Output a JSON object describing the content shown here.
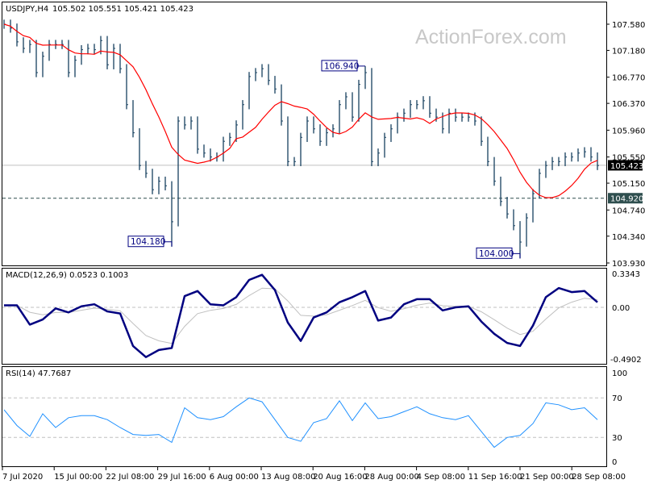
{
  "header": {
    "symbol": "USDJPY,H4",
    "ohlc": "105.502 105.551 105.421 105.423"
  },
  "watermark": "ActionForex.com",
  "macd_panel": {
    "label": "MACD(12,26,9) 0.0523 0.1003",
    "ticks": [
      "0.3343",
      "0.00",
      "-0.4902"
    ]
  },
  "rsi_panel": {
    "label": "RSI(14) 47.7687",
    "ticks": [
      "100",
      "70",
      "30",
      "0"
    ]
  },
  "chart_data": [
    {
      "type": "bar",
      "title": "USDJPY,H4",
      "price_ticks": [
        107.58,
        107.18,
        106.77,
        106.37,
        105.96,
        105.55,
        105.15,
        104.74,
        104.34,
        103.93
      ],
      "price_tick_labels": [
        "107.580",
        "107.180",
        "106.770",
        "106.370",
        "105.960",
        "105.550",
        "105.150",
        "104.740",
        "104.340",
        "103.930"
      ],
      "ylim": [
        103.93,
        107.58
      ],
      "x_tick_labels": [
        "7 Jul 2020",
        "15 Jul 00:00",
        "22 Jul 08:00",
        "29 Jul 16:00",
        "6 Aug 00:00",
        "13 Aug 08:00",
        "20 Aug 16:00",
        "28 Aug 00:00",
        "4 Sep 08:00",
        "11 Sep 16:00",
        "21 Sep 00:00",
        "28 Sep 08:00"
      ],
      "closes": [
        107.58,
        107.52,
        107.31,
        107.21,
        107.27,
        106.84,
        107.09,
        107.27,
        107.27,
        107.27,
        106.84,
        107.03,
        107.19,
        107.21,
        107.19,
        107.33,
        106.96,
        107.21,
        106.9,
        106.35,
        105.92,
        105.42,
        105.3,
        105.05,
        105.18,
        105.11,
        104.56,
        106.1,
        106.04,
        106.1,
        105.67,
        105.61,
        105.55,
        105.55,
        105.79,
        105.85,
        106.04,
        106.35,
        106.78,
        106.84,
        106.9,
        106.72,
        106.59,
        106.1,
        105.48,
        105.48,
        105.85,
        106.1,
        105.98,
        105.79,
        105.92,
        105.98,
        106.35,
        106.47,
        106.16,
        106.66,
        106.84,
        105.48,
        105.61,
        105.85,
        105.98,
        106.16,
        106.22,
        106.35,
        106.35,
        106.41,
        106.22,
        106.16,
        105.98,
        106.22,
        106.16,
        106.16,
        106.16,
        106.1,
        105.79,
        105.48,
        105.18,
        104.87,
        104.68,
        104.5,
        104.25,
        104.62,
        104.99,
        105.3,
        105.42,
        105.48,
        105.48,
        105.55,
        105.55,
        105.61,
        105.63,
        105.55,
        105.42
      ],
      "current_price": {
        "value": 105.423,
        "label": "105.423",
        "color": "#000000"
      },
      "level_line": {
        "value": 104.92,
        "label": "104.920",
        "color": "#2f4f4f"
      },
      "annotations": [
        {
          "label": "104.180",
          "value": 104.18,
          "bar": 26
        },
        {
          "label": "106.940",
          "value": 106.94,
          "bar": 56
        },
        {
          "label": "104.000",
          "value": 104.0,
          "bar": 80
        }
      ],
      "colors": {
        "bars": "#17405f",
        "moving_average": "#ff0000"
      }
    },
    {
      "type": "line",
      "title": "MACD(12,26,9)",
      "ylim": [
        -0.4902,
        0.3343
      ],
      "macd": [
        0.02,
        0.02,
        -0.17,
        -0.12,
        -0.01,
        -0.05,
        0.01,
        0.03,
        -0.04,
        -0.06,
        -0.38,
        -0.49,
        -0.42,
        -0.4,
        0.11,
        0.16,
        0.03,
        0.02,
        0.1,
        0.27,
        0.32,
        0.17,
        -0.15,
        -0.33,
        -0.1,
        -0.05,
        0.05,
        0.1,
        0.16,
        -0.13,
        -0.1,
        0.03,
        0.08,
        0.08,
        -0.03,
        0.0,
        0.01,
        -0.14,
        -0.26,
        -0.35,
        -0.38,
        -0.18,
        0.1,
        0.19,
        0.15,
        0.16,
        0.05
      ],
      "colors": {
        "macd": "#000080",
        "signal": "#c0c0c0"
      }
    },
    {
      "type": "line",
      "title": "RSI(14)",
      "ylim": [
        0,
        100
      ],
      "levels": [
        70,
        30
      ],
      "rsi": [
        58,
        42,
        31,
        54,
        40,
        50,
        52,
        52,
        48,
        40,
        33,
        32,
        33,
        25,
        60,
        50,
        48,
        51,
        61,
        70,
        66,
        48,
        30,
        26,
        45,
        49,
        67,
        47,
        65,
        49,
        51,
        56,
        61,
        54,
        50,
        48,
        52,
        36,
        20,
        30,
        32,
        44,
        65,
        63,
        58,
        60,
        48
      ],
      "colors": {
        "rsi": "#1e90ff"
      }
    }
  ]
}
